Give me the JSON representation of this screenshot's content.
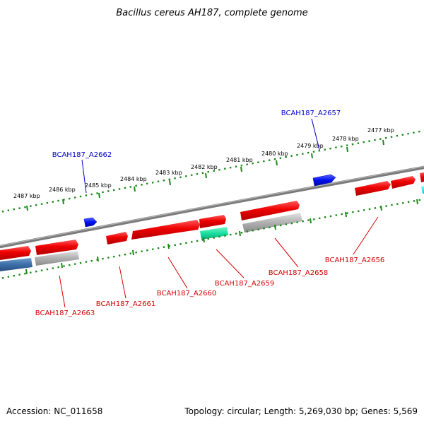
{
  "title": "Bacillus cereus AH187, complete genome",
  "accession": "Accession: NC_011658",
  "topology": "Topology: circular; Length: 5,269,030 bp; Genes: 5,569",
  "colors": {
    "backbone": "#7a7a7a",
    "tick": "#1a8a1a",
    "forward_cds": "#ee0000",
    "reverse_cds_gray": "#a8a8a8",
    "steel_cds": "#3c6ea8",
    "blue_cds": "#0010f0",
    "teal_cds": "#18e0a0",
    "cyan_cds": "#00e0e0",
    "label_red": "#d40000",
    "label_blue": "#0000c8"
  },
  "ruler": {
    "unit": "kbp",
    "ticks": [
      "2487 kbp",
      "2486 kbp",
      "2485 kbp",
      "2484 kbp",
      "2483 kbp",
      "2482 kbp",
      "2481 kbp",
      "2480 kbp",
      "2479 kbp",
      "2478 kbp",
      "2477 kbp"
    ]
  },
  "gene_labels": [
    {
      "text": "BCAH187_A2657",
      "color": "blue"
    },
    {
      "text": "BCAH187_A2662",
      "color": "blue"
    },
    {
      "text": "BCAH187_A2656",
      "color": "red"
    },
    {
      "text": "BCAH187_A2658",
      "color": "red"
    },
    {
      "text": "BCAH187_A2659",
      "color": "red"
    },
    {
      "text": "BCAH187_A2660",
      "color": "red"
    },
    {
      "text": "BCAH187_A2661",
      "color": "red"
    },
    {
      "text": "BCAH187_A2663",
      "color": "red"
    }
  ]
}
